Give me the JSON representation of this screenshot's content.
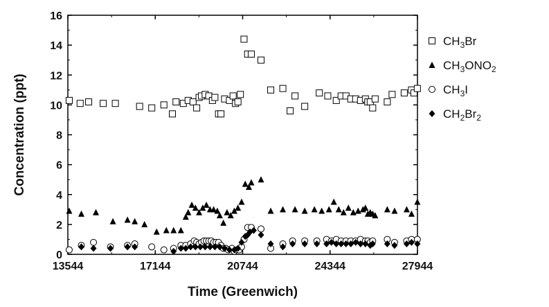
{
  "chart_data": {
    "type": "scatter",
    "title": "",
    "xlabel": "Time (Greenwich)",
    "ylabel": "Concentration (ppt)",
    "xlim": [
      13544,
      27944
    ],
    "ylim": [
      0,
      16
    ],
    "xticks": [
      13544,
      17144,
      20744,
      24344,
      27944
    ],
    "yticks": [
      0,
      2,
      4,
      6,
      8,
      10,
      12,
      14,
      16
    ],
    "grid": false,
    "legend_position": "right",
    "series": [
      {
        "name": "CH3Br",
        "label_parts": [
          [
            "CH",
            false
          ],
          [
            "3",
            true
          ],
          [
            "Br",
            false
          ]
        ],
        "marker": "open-square",
        "points": [
          [
            13600,
            10.3
          ],
          [
            14050,
            10.1
          ],
          [
            14400,
            10.2
          ],
          [
            15000,
            10.1
          ],
          [
            15500,
            10.1
          ],
          [
            16500,
            9.9
          ],
          [
            17000,
            9.8
          ],
          [
            17500,
            10.0
          ],
          [
            17850,
            9.4
          ],
          [
            18000,
            10.2
          ],
          [
            18300,
            10.1
          ],
          [
            18500,
            10.3
          ],
          [
            18700,
            10.2
          ],
          [
            18850,
            9.8
          ],
          [
            18950,
            10.5
          ],
          [
            19050,
            10.6
          ],
          [
            19200,
            10.7
          ],
          [
            19350,
            10.6
          ],
          [
            19500,
            10.3
          ],
          [
            19600,
            10.5
          ],
          [
            19750,
            9.4
          ],
          [
            19850,
            9.4
          ],
          [
            20000,
            10.4
          ],
          [
            20200,
            10.3
          ],
          [
            20350,
            10.6
          ],
          [
            20450,
            10.1
          ],
          [
            20550,
            10.2
          ],
          [
            20650,
            10.7
          ],
          [
            20800,
            14.4
          ],
          [
            20950,
            13.4
          ],
          [
            21100,
            13.4
          ],
          [
            21500,
            13.0
          ],
          [
            21900,
            11.0
          ],
          [
            22400,
            11.1
          ],
          [
            22700,
            9.6
          ],
          [
            22900,
            10.6
          ],
          [
            23300,
            9.9
          ],
          [
            23900,
            10.8
          ],
          [
            24250,
            10.6
          ],
          [
            24600,
            10.3
          ],
          [
            24800,
            10.6
          ],
          [
            25000,
            10.6
          ],
          [
            25200,
            10.4
          ],
          [
            25400,
            10.4
          ],
          [
            25600,
            10.3
          ],
          [
            25800,
            10.4
          ],
          [
            25900,
            10.2
          ],
          [
            26000,
            10.2
          ],
          [
            26100,
            9.8
          ],
          [
            26200,
            10.4
          ],
          [
            26700,
            10.2
          ],
          [
            26900,
            10.7
          ],
          [
            27400,
            10.8
          ],
          [
            27700,
            11.0
          ],
          [
            27800,
            10.8
          ],
          [
            27940,
            11.1
          ]
        ]
      },
      {
        "name": "CH3ONO2",
        "label_parts": [
          [
            "CH",
            false
          ],
          [
            "3",
            true
          ],
          [
            "ONO",
            false
          ],
          [
            "2",
            true
          ]
        ],
        "marker": "filled-triangle",
        "points": [
          [
            13600,
            2.9
          ],
          [
            14100,
            2.7
          ],
          [
            14700,
            2.8
          ],
          [
            15400,
            2.2
          ],
          [
            16000,
            2.3
          ],
          [
            16300,
            2.2
          ],
          [
            16700,
            2.0
          ],
          [
            17200,
            1.5
          ],
          [
            17600,
            1.6
          ],
          [
            17900,
            1.6
          ],
          [
            18200,
            1.6
          ],
          [
            18400,
            2.5
          ],
          [
            18500,
            2.8
          ],
          [
            18650,
            3.3
          ],
          [
            18800,
            3.1
          ],
          [
            18950,
            2.8
          ],
          [
            19100,
            3.1
          ],
          [
            19250,
            3.3
          ],
          [
            19400,
            3.0
          ],
          [
            19550,
            3.0
          ],
          [
            19700,
            2.9
          ],
          [
            19800,
            2.6
          ],
          [
            19950,
            2.1
          ],
          [
            20100,
            2.8
          ],
          [
            20250,
            2.6
          ],
          [
            20400,
            2.9
          ],
          [
            20550,
            3.1
          ],
          [
            20700,
            3.5
          ],
          [
            20850,
            4.7
          ],
          [
            21000,
            4.5
          ],
          [
            21100,
            4.8
          ],
          [
            21500,
            5.0
          ],
          [
            21900,
            2.9
          ],
          [
            22400,
            3.0
          ],
          [
            22900,
            3.0
          ],
          [
            23300,
            2.9
          ],
          [
            23700,
            3.0
          ],
          [
            24000,
            2.9
          ],
          [
            24300,
            3.0
          ],
          [
            24500,
            3.5
          ],
          [
            24700,
            3.0
          ],
          [
            24900,
            2.8
          ],
          [
            25100,
            3.1
          ],
          [
            25300,
            2.8
          ],
          [
            25500,
            2.9
          ],
          [
            25700,
            3.0
          ],
          [
            25800,
            3.1
          ],
          [
            25900,
            2.7
          ],
          [
            26000,
            2.8
          ],
          [
            26100,
            2.7
          ],
          [
            26200,
            2.6
          ],
          [
            26700,
            3.0
          ],
          [
            27000,
            2.9
          ],
          [
            27500,
            3.0
          ],
          [
            27700,
            2.7
          ],
          [
            27940,
            3.5
          ]
        ]
      },
      {
        "name": "CH3I",
        "label_parts": [
          [
            "CH",
            false
          ],
          [
            "3",
            true
          ],
          [
            "I",
            false
          ]
        ],
        "marker": "open-circle",
        "points": [
          [
            13600,
            0.3
          ],
          [
            14100,
            0.6
          ],
          [
            14600,
            0.8
          ],
          [
            15300,
            0.5
          ],
          [
            16000,
            0.6
          ],
          [
            16300,
            0.7
          ],
          [
            17000,
            0.5
          ],
          [
            17500,
            0.3
          ],
          [
            17900,
            0.4
          ],
          [
            18200,
            0.6
          ],
          [
            18400,
            0.6
          ],
          [
            18600,
            0.7
          ],
          [
            18750,
            0.9
          ],
          [
            18850,
            0.8
          ],
          [
            18950,
            0.7
          ],
          [
            19050,
            0.8
          ],
          [
            19150,
            0.9
          ],
          [
            19250,
            0.9
          ],
          [
            19350,
            0.9
          ],
          [
            19450,
            0.9
          ],
          [
            19550,
            0.8
          ],
          [
            19650,
            0.8
          ],
          [
            19750,
            0.8
          ],
          [
            19850,
            0.6
          ],
          [
            19950,
            0.4
          ],
          [
            20050,
            0.4
          ],
          [
            20150,
            0.3
          ],
          [
            20300,
            0.4
          ],
          [
            20400,
            0.2
          ],
          [
            20500,
            0.3
          ],
          [
            20600,
            0.3
          ],
          [
            20700,
            0.5
          ],
          [
            20800,
            1.0
          ],
          [
            20950,
            1.8
          ],
          [
            21100,
            1.8
          ],
          [
            21500,
            1.7
          ],
          [
            21900,
            0.4
          ],
          [
            22400,
            0.7
          ],
          [
            22800,
            0.9
          ],
          [
            23300,
            0.9
          ],
          [
            23800,
            0.9
          ],
          [
            24200,
            1.0
          ],
          [
            24400,
            0.9
          ],
          [
            24600,
            1.0
          ],
          [
            24800,
            0.9
          ],
          [
            25000,
            0.9
          ],
          [
            25200,
            0.9
          ],
          [
            25400,
            0.9
          ],
          [
            25600,
            1.0
          ],
          [
            25800,
            0.9
          ],
          [
            25900,
            0.9
          ],
          [
            26000,
            0.8
          ],
          [
            26100,
            0.9
          ],
          [
            26700,
            1.0
          ],
          [
            27000,
            0.8
          ],
          [
            27500,
            0.9
          ],
          [
            27700,
            1.0
          ],
          [
            27940,
            1.0
          ]
        ]
      },
      {
        "name": "CH2Br2",
        "label_parts": [
          [
            "CH",
            false
          ],
          [
            "2",
            true
          ],
          [
            "Br",
            false
          ],
          [
            "2",
            true
          ]
        ],
        "marker": "filled-diamond",
        "points": [
          [
            14100,
            0.5
          ],
          [
            14600,
            0.4
          ],
          [
            15300,
            0.4
          ],
          [
            16000,
            0.5
          ],
          [
            16300,
            0.5
          ],
          [
            17900,
            0.2
          ],
          [
            18200,
            0.4
          ],
          [
            18400,
            0.4
          ],
          [
            18600,
            0.5
          ],
          [
            18800,
            0.5
          ],
          [
            19000,
            0.5
          ],
          [
            19200,
            0.5
          ],
          [
            19400,
            0.5
          ],
          [
            19600,
            0.5
          ],
          [
            19800,
            0.5
          ],
          [
            20000,
            0.4
          ],
          [
            20200,
            0.3
          ],
          [
            20400,
            0.3
          ],
          [
            20550,
            0.4
          ],
          [
            20700,
            0.8
          ],
          [
            20850,
            1.2
          ],
          [
            20950,
            1.3
          ],
          [
            21050,
            1.5
          ],
          [
            21200,
            1.6
          ],
          [
            21500,
            1.3
          ],
          [
            21900,
            0.7
          ],
          [
            22400,
            0.5
          ],
          [
            22800,
            0.7
          ],
          [
            23300,
            0.7
          ],
          [
            23800,
            0.7
          ],
          [
            24200,
            0.7
          ],
          [
            24400,
            0.8
          ],
          [
            24600,
            0.7
          ],
          [
            24800,
            0.7
          ],
          [
            25000,
            0.7
          ],
          [
            25200,
            0.7
          ],
          [
            25400,
            0.8
          ],
          [
            25600,
            0.7
          ],
          [
            25800,
            0.7
          ],
          [
            26000,
            0.6
          ],
          [
            26100,
            0.7
          ],
          [
            26700,
            0.7
          ],
          [
            27000,
            0.6
          ],
          [
            27500,
            0.7
          ],
          [
            27700,
            0.8
          ],
          [
            27940,
            0.7
          ]
        ]
      }
    ]
  }
}
